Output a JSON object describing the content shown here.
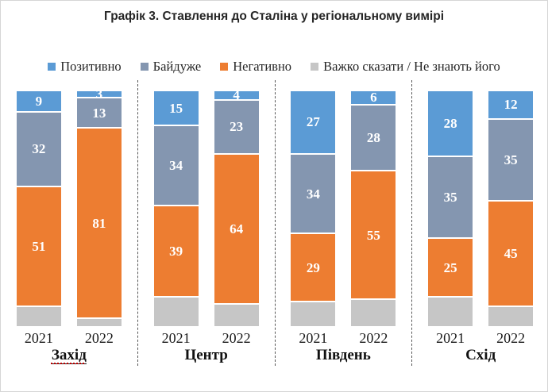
{
  "title": "Графік 3. Ставлення до Сталіна у регіональному вимірі",
  "legend": [
    {
      "key": "positive",
      "label": "Позитивно",
      "color": "#5B9BD5"
    },
    {
      "key": "indifferent",
      "label": "Байдуже",
      "color": "#8496B0"
    },
    {
      "key": "negative",
      "label": "Негативно",
      "color": "#ED7D31"
    },
    {
      "key": "unsure",
      "label": "Важко сказати / Не знають його",
      "color": "#C6C6C6"
    }
  ],
  "chart_data": {
    "type": "bar",
    "stacked": true,
    "orientation": "vertical",
    "unit": "percent",
    "ylim": [
      0,
      100
    ],
    "grid": false,
    "legend_position": "top",
    "title": "Графік 3. Ставлення до Сталіна у регіональному вимірі",
    "categories": [
      "Захід 2021",
      "Захід 2022",
      "Центр 2021",
      "Центр 2022",
      "Південь 2021",
      "Південь 2022",
      "Схід 2021",
      "Схід 2022"
    ],
    "series": [
      {
        "key": "positive",
        "name": "Позитивно",
        "color": "#5B9BD5",
        "data_labels": true,
        "values": [
          9,
          3,
          15,
          4,
          27,
          6,
          28,
          12
        ]
      },
      {
        "key": "indifferent",
        "name": "Байдуже",
        "color": "#8496B0",
        "data_labels": true,
        "values": [
          32,
          13,
          34,
          23,
          34,
          28,
          35,
          35
        ]
      },
      {
        "key": "negative",
        "name": "Негативно",
        "color": "#ED7D31",
        "data_labels": true,
        "values": [
          51,
          81,
          39,
          64,
          29,
          55,
          25,
          45
        ]
      },
      {
        "key": "unsure",
        "name": "Важко сказати / Не знають його",
        "color": "#C6C6C6",
        "data_labels": false,
        "values": [
          8,
          3,
          12,
          9,
          10,
          11,
          12,
          8
        ]
      }
    ],
    "groups": [
      {
        "region": "Захід",
        "underlined": true,
        "years": [
          "2021",
          "2022"
        ]
      },
      {
        "region": "Центр",
        "underlined": false,
        "years": [
          "2021",
          "2022"
        ]
      },
      {
        "region": "Південь",
        "underlined": false,
        "years": [
          "2021",
          "2022"
        ]
      },
      {
        "region": "Схід",
        "underlined": false,
        "years": [
          "2021",
          "2022"
        ]
      }
    ]
  }
}
